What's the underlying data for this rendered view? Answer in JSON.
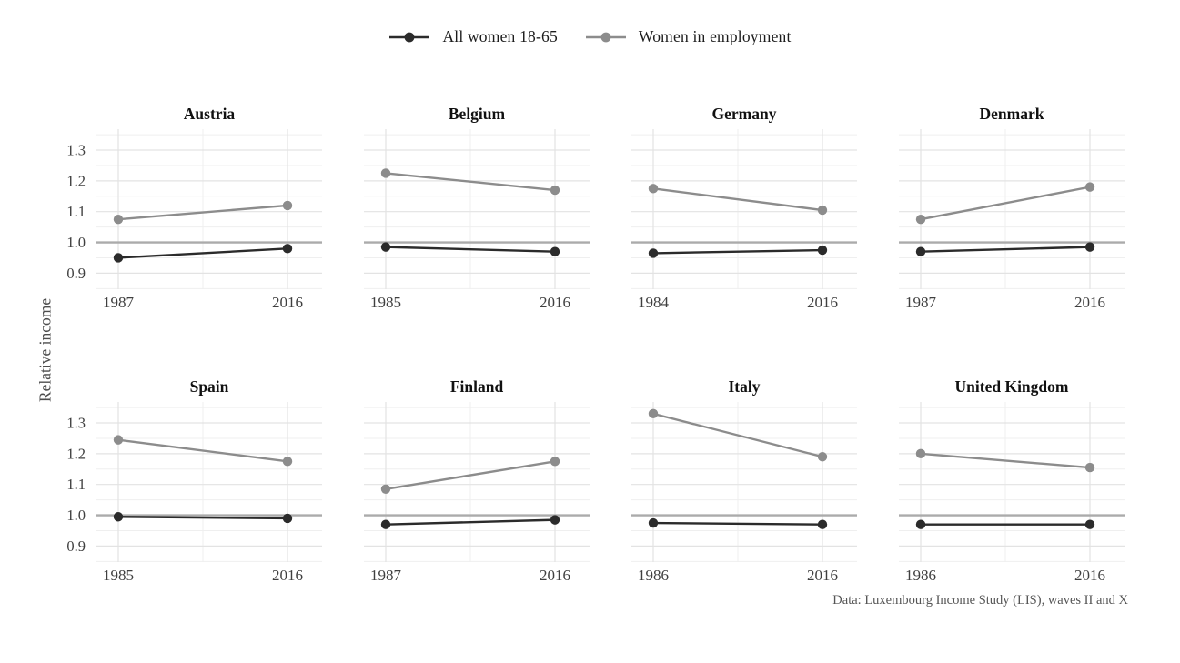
{
  "chart_data": {
    "type": "line",
    "title": "",
    "ylabel": "Relative income",
    "caption": "Data: Luxembourg Income Study (LIS), waves II and X",
    "legend_position": "top",
    "grid": true,
    "ref_line": 1.0,
    "ylim": [
      0.848,
      1.368
    ],
    "y_ticks_major": [
      1.3,
      1.2,
      1.1,
      1.0,
      0.9
    ],
    "y_ticks_minor": [
      1.35,
      1.25,
      1.15,
      1.05,
      0.95,
      0.85
    ],
    "series": [
      {
        "name": "All women 18-65",
        "color": "#2b2b2b"
      },
      {
        "name": "Women in employment",
        "color": "#8c8c8c"
      }
    ],
    "colors": {
      "ref_line": "#ababab",
      "grid_major": "#e3e3e3",
      "grid_minor": "#efefef",
      "tick_label": "#3f3f3f",
      "background": "#ffffff"
    },
    "panels": [
      {
        "country": "Austria",
        "years": [
          "1987",
          "2016"
        ],
        "series_values": [
          [
            0.95,
            0.98
          ],
          [
            1.075,
            1.12
          ]
        ]
      },
      {
        "country": "Belgium",
        "years": [
          "1985",
          "2016"
        ],
        "series_values": [
          [
            0.985,
            0.97
          ],
          [
            1.225,
            1.17
          ]
        ]
      },
      {
        "country": "Germany",
        "years": [
          "1984",
          "2016"
        ],
        "series_values": [
          [
            0.965,
            0.975
          ],
          [
            1.175,
            1.105
          ]
        ]
      },
      {
        "country": "Denmark",
        "years": [
          "1987",
          "2016"
        ],
        "series_values": [
          [
            0.97,
            0.985
          ],
          [
            1.075,
            1.18
          ]
        ]
      },
      {
        "country": "Spain",
        "years": [
          "1985",
          "2016"
        ],
        "series_values": [
          [
            0.995,
            0.99
          ],
          [
            1.245,
            1.175
          ]
        ]
      },
      {
        "country": "Finland",
        "years": [
          "1987",
          "2016"
        ],
        "series_values": [
          [
            0.97,
            0.985
          ],
          [
            1.085,
            1.175
          ]
        ]
      },
      {
        "country": "Italy",
        "years": [
          "1986",
          "2016"
        ],
        "series_values": [
          [
            0.975,
            0.97
          ],
          [
            1.33,
            1.19
          ]
        ]
      },
      {
        "country": "United Kingdom",
        "years": [
          "1986",
          "2016"
        ],
        "series_values": [
          [
            0.97,
            0.97
          ],
          [
            1.2,
            1.155
          ]
        ]
      }
    ]
  }
}
